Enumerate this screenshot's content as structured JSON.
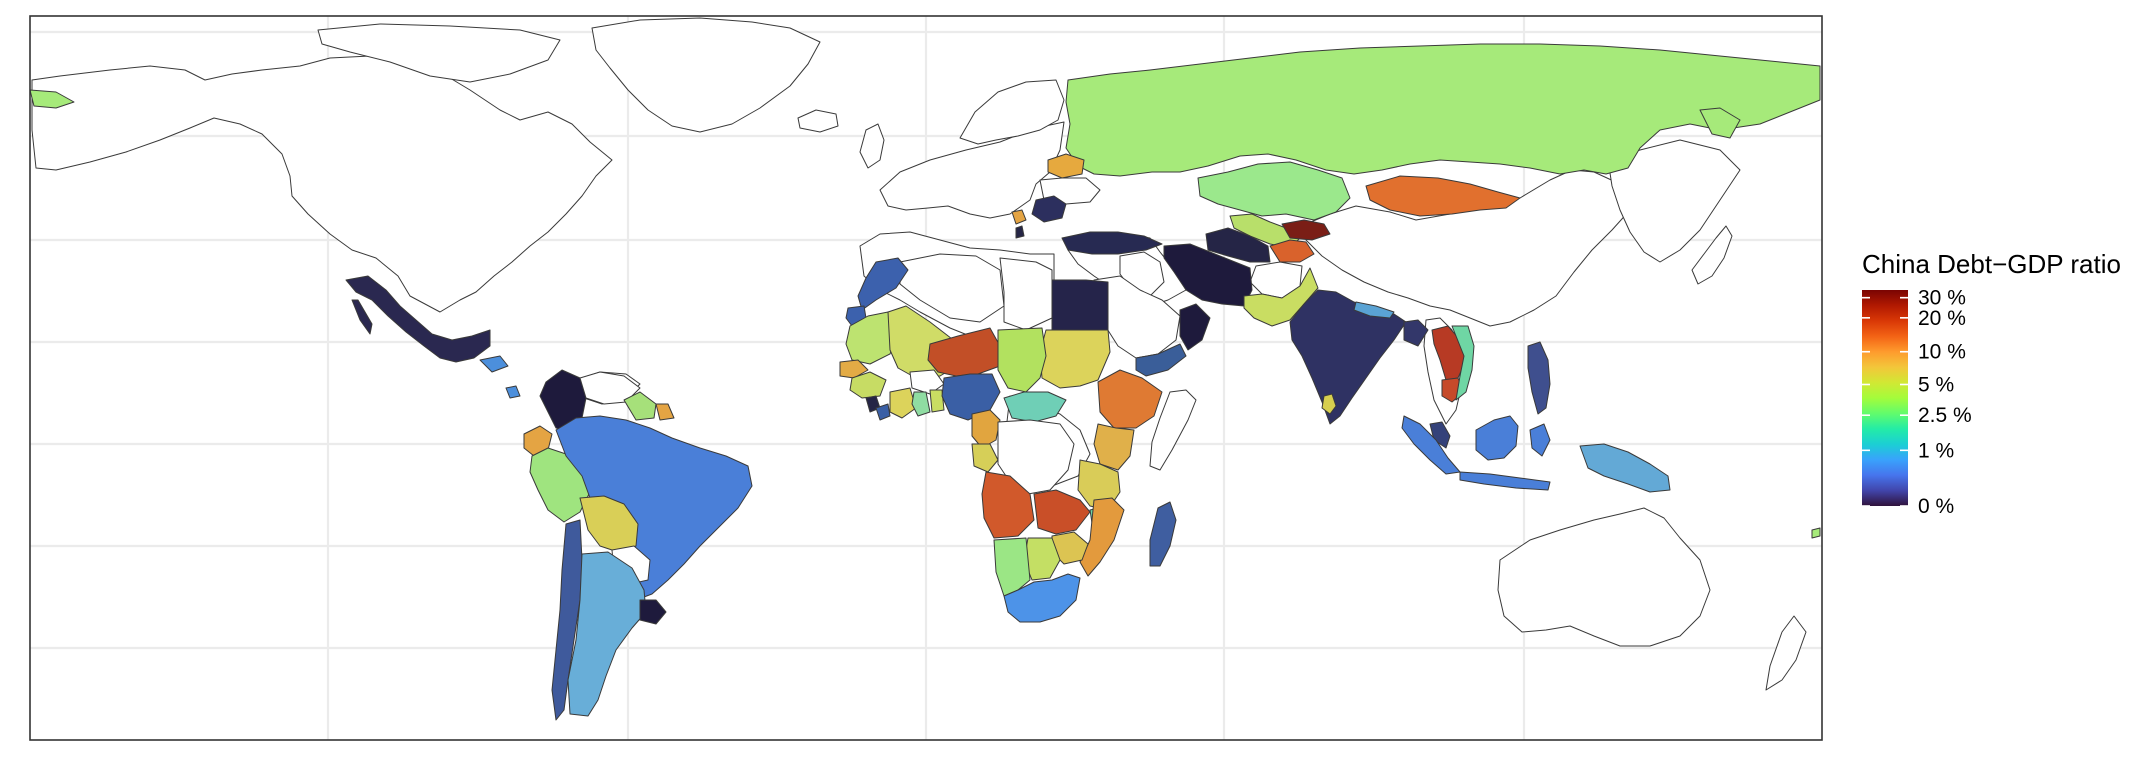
{
  "legend": {
    "title": "China Debt−GDP ratio",
    "labels": [
      "30 %",
      "20 %",
      "10 %",
      "5 %",
      "2.5 %",
      "1 %",
      "0 %"
    ],
    "ticks": [
      30,
      20,
      10,
      5,
      2.5,
      1,
      0
    ],
    "gradient": [
      "#30123b",
      "#4145ab",
      "#4675ed",
      "#39a2fc",
      "#1bcfd4",
      "#24eca6",
      "#61fc6c",
      "#a4fc3b",
      "#d1e834",
      "#f3c63a",
      "#fe9b2d",
      "#f36315",
      "#d93806",
      "#b11901",
      "#7a0402"
    ]
  },
  "colors": {
    "background": "#ffffff",
    "no_data_fill": "#ffffff",
    "border": "#3a3a3a",
    "grid": "#ebebeb",
    "frame": "#333333"
  },
  "countries": {
    "russia": {
      "ratio": 4.2,
      "fill": "#a6ea7a"
    },
    "kazakhstan": {
      "ratio": 3.8,
      "fill": "#9be88c"
    },
    "mongolia": {
      "ratio": 16,
      "fill": "#e1702e"
    },
    "kyrgyzstan": {
      "ratio": 32,
      "fill": "#7a1e16"
    },
    "tajikistan": {
      "ratio": 18,
      "fill": "#d9622c"
    },
    "uzbekistan": {
      "ratio": 5.5,
      "fill": "#b8df6a"
    },
    "turkmenistan": {
      "ratio": 0.5,
      "fill": "#252546"
    },
    "iran": {
      "ratio": 0.2,
      "fill": "#1e1a3c"
    },
    "pakistan": {
      "ratio": 6,
      "fill": "#c9dd62"
    },
    "afghanistan": {
      "ratio": null,
      "fill": "#ffffff"
    },
    "india": {
      "ratio": 0.4,
      "fill": "#2f3263"
    },
    "nepal": {
      "ratio": 2,
      "fill": "#5aa3d4"
    },
    "bangladesh": {
      "ratio": 0.6,
      "fill": "#33376a"
    },
    "sri_lanka": {
      "ratio": 8,
      "fill": "#d7cf4f"
    },
    "myanmar": {
      "ratio": null,
      "fill": "#ffffff"
    },
    "laos": {
      "ratio": 25,
      "fill": "#b73a24"
    },
    "vietnam": {
      "ratio": 3,
      "fill": "#6fd6a4"
    },
    "cambodia": {
      "ratio": 22,
      "fill": "#c64a2a"
    },
    "malaysia": {
      "ratio": 0.7,
      "fill": "#34427a"
    },
    "indonesia": {
      "ratio": 1.3,
      "fill": "#4a7fd8"
    },
    "borneo": {
      "ratio": 1.3,
      "fill": "#4a7fd8"
    },
    "philippines": {
      "ratio": 0.8,
      "fill": "#3f4f8e"
    },
    "png": {
      "ratio": 2,
      "fill": "#63a9d6"
    },
    "turkey": {
      "ratio": 0.3,
      "fill": "#272a52"
    },
    "ukraine": {
      "ratio": null,
      "fill": "#ffffff"
    },
    "belarus": {
      "ratio": 10,
      "fill": "#e6a93e"
    },
    "romania": {
      "ratio": 0.4,
      "fill": "#2c2f5e"
    },
    "iraq": {
      "ratio": null,
      "fill": "#ffffff"
    },
    "saudi": {
      "ratio": null,
      "fill": "#ffffff"
    },
    "yemen": {
      "ratio": 1.1,
      "fill": "#3a5e99"
    },
    "oman": {
      "ratio": 0.2,
      "fill": "#1e1a3c"
    },
    "egypt": {
      "ratio": 0.3,
      "fill": "#25244a"
    },
    "sudan": {
      "ratio": 7,
      "fill": "#dcd35b"
    },
    "ethiopia": {
      "ratio": 14,
      "fill": "#df7a33"
    },
    "kenya": {
      "ratio": 9,
      "fill": "#e0b04a"
    },
    "tanzania": {
      "ratio": 7,
      "fill": "#d9cc58"
    },
    "somalia": {
      "ratio": null,
      "fill": "#ffffff"
    },
    "chad": {
      "ratio": 4.5,
      "fill": "#b2e15f"
    },
    "niger": {
      "ratio": 18,
      "fill": "#c24f27"
    },
    "nigeria": {
      "ratio": 1.1,
      "fill": "#3a5fa5"
    },
    "cameroon": {
      "ratio": 9,
      "fill": "#e1a53f"
    },
    "car": {
      "ratio": 3,
      "fill": "#6fcfb6"
    },
    "drc": {
      "ratio": null,
      "fill": "#ffffff"
    },
    "congo": {
      "ratio": 7,
      "fill": "#d6cf58"
    },
    "angola": {
      "ratio": 20,
      "fill": "#d1592b"
    },
    "zambia": {
      "ratio": 22,
      "fill": "#c94f28"
    },
    "zimbabwe": {
      "ratio": 8,
      "fill": "#dcc452"
    },
    "mozambique": {
      "ratio": 12,
      "fill": "#e39a3d"
    },
    "namibia": {
      "ratio": 4,
      "fill": "#9be685"
    },
    "botswana": {
      "ratio": 6,
      "fill": "#c4df64"
    },
    "south_africa": {
      "ratio": 1.5,
      "fill": "#4d93e8"
    },
    "madagascar": {
      "ratio": 0.9,
      "fill": "#3f5ea0"
    },
    "mali": {
      "ratio": 6,
      "fill": "#d0dc67"
    },
    "mauritania": {
      "ratio": 5,
      "fill": "#bde370"
    },
    "senegal": {
      "ratio": 9,
      "fill": "#e3ab45"
    },
    "guinea": {
      "ratio": 6,
      "fill": "#c7dc64"
    },
    "burkina": {
      "ratio": null,
      "fill": "#ffffff"
    },
    "ghana": {
      "ratio": 2.5,
      "fill": "#8fdca2"
    },
    "morocco": {
      "ratio": 1,
      "fill": "#3c61ad"
    },
    "algeria": {
      "ratio": null,
      "fill": "#ffffff"
    },
    "libya": {
      "ratio": null,
      "fill": "#ffffff"
    },
    "mexico": {
      "ratio": 0.3,
      "fill": "#2a2850"
    },
    "colombia": {
      "ratio": 0.1,
      "fill": "#1e1a3c"
    },
    "venezuela": {
      "ratio": null,
      "fill": "#ffffff"
    },
    "guyana": {
      "ratio": 4,
      "fill": "#a6e07a"
    },
    "ecuador": {
      "ratio": 10,
      "fill": "#e4a443"
    },
    "peru": {
      "ratio": 4,
      "fill": "#9fe47f"
    },
    "brazil": {
      "ratio": 1.2,
      "fill": "#4a7fd8"
    },
    "bolivia": {
      "ratio": 7,
      "fill": "#d9cf57"
    },
    "paraguay": {
      "ratio": null,
      "fill": "#ffffff"
    },
    "chile": {
      "ratio": 0.9,
      "fill": "#3f5a9c"
    },
    "argentina": {
      "ratio": 2,
      "fill": "#68aed8"
    },
    "uruguay": {
      "ratio": 0.1,
      "fill": "#1e1a3c"
    },
    "costa_rica": {
      "ratio": 1.4,
      "fill": "#4c8fdc"
    }
  }
}
